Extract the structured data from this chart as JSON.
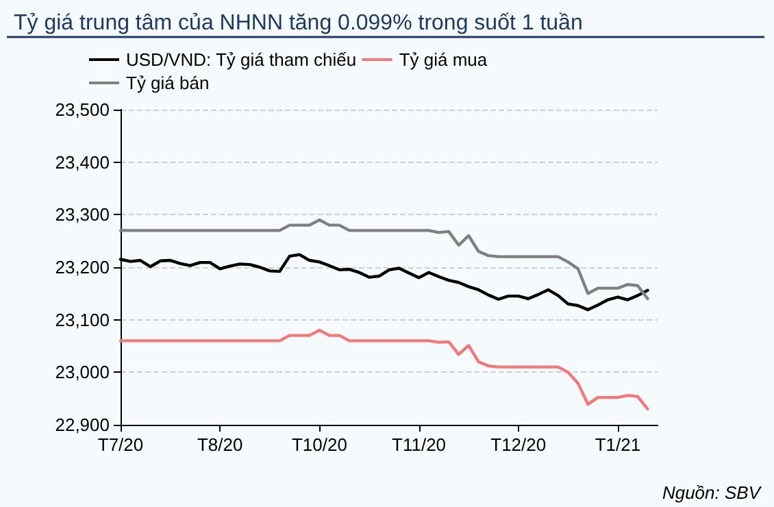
{
  "chart_data": {
    "type": "line",
    "title": "Tỷ giá trung tâm của NHNN tăng 0.099% trong suốt 1 tuần",
    "annotations": [
      "Nguồn: SBV"
    ],
    "categories": [
      "T7/20",
      null,
      null,
      null,
      null,
      null,
      null,
      null,
      null,
      null,
      "T8/20",
      null,
      null,
      null,
      null,
      null,
      null,
      null,
      null,
      null,
      "T10/20",
      null,
      null,
      null,
      null,
      null,
      null,
      null,
      null,
      null,
      "T11/20",
      null,
      null,
      null,
      null,
      null,
      null,
      null,
      null,
      null,
      "T12/20",
      null,
      null,
      null,
      null,
      null,
      null,
      null,
      null,
      null,
      "T1/21",
      null,
      null,
      null,
      null
    ],
    "ylim": [
      22900,
      23500
    ],
    "yticks": [
      {
        "value": 22900,
        "label": "22,900"
      },
      {
        "value": 23000,
        "label": "23,000"
      },
      {
        "value": 23100,
        "label": "23,100"
      },
      {
        "value": 23200,
        "label": "23,200"
      },
      {
        "value": 23300,
        "label": "23,300"
      },
      {
        "value": 23400,
        "label": "23,400"
      },
      {
        "value": 23500,
        "label": "23,500"
      }
    ],
    "grid": "y",
    "legend": "top left",
    "marker": "none",
    "line_style": "solid",
    "series": [
      {
        "name": "USD/VND: Tỷ giá tham chiếu",
        "color": "#000000",
        "values": [
          23215,
          23211,
          23213,
          23201,
          23212,
          23213,
          23207,
          23203,
          23209,
          23209,
          23197,
          23202,
          23206,
          23205,
          23200,
          23193,
          23192,
          23221,
          23224,
          23213,
          23210,
          23203,
          23195,
          23196,
          23190,
          23181,
          23183,
          23195,
          23198,
          23189,
          23180,
          23190,
          23182,
          23175,
          23171,
          23163,
          23157,
          23147,
          23139,
          23145,
          23145,
          23140,
          23148,
          23157,
          23146,
          23130,
          23127,
          23119,
          23128,
          23138,
          23143,
          23138,
          23146,
          23156,
          null
        ]
      },
      {
        "name": "Tỷ giá mua",
        "color": "#f4777a",
        "values": [
          23060,
          23060,
          23060,
          23060,
          23060,
          23060,
          23060,
          23060,
          23060,
          23060,
          23060,
          23060,
          23060,
          23060,
          23060,
          23060,
          23060,
          23070,
          23070,
          23070,
          23080,
          23070,
          23070,
          23060,
          23060,
          23060,
          23060,
          23060,
          23060,
          23060,
          23060,
          23060,
          23057,
          23058,
          23034,
          23051,
          23020,
          23012,
          23010,
          23010,
          23010,
          23010,
          23010,
          23010,
          23010,
          23000,
          22979,
          22939,
          22952,
          22952,
          22952,
          22956,
          22954,
          22930,
          null
        ]
      },
      {
        "name": "Tỷ giá bán",
        "color": "#808080",
        "values": [
          23270,
          23270,
          23270,
          23270,
          23270,
          23270,
          23270,
          23270,
          23270,
          23270,
          23270,
          23270,
          23270,
          23270,
          23270,
          23270,
          23270,
          23280,
          23280,
          23280,
          23290,
          23280,
          23280,
          23270,
          23270,
          23270,
          23270,
          23270,
          23270,
          23270,
          23270,
          23270,
          23266,
          23268,
          23242,
          23260,
          23230,
          23222,
          23220,
          23220,
          23220,
          23220,
          23220,
          23220,
          23220,
          23210,
          23197,
          23150,
          23160,
          23160,
          23160,
          23167,
          23165,
          23140,
          null
        ]
      }
    ]
  }
}
